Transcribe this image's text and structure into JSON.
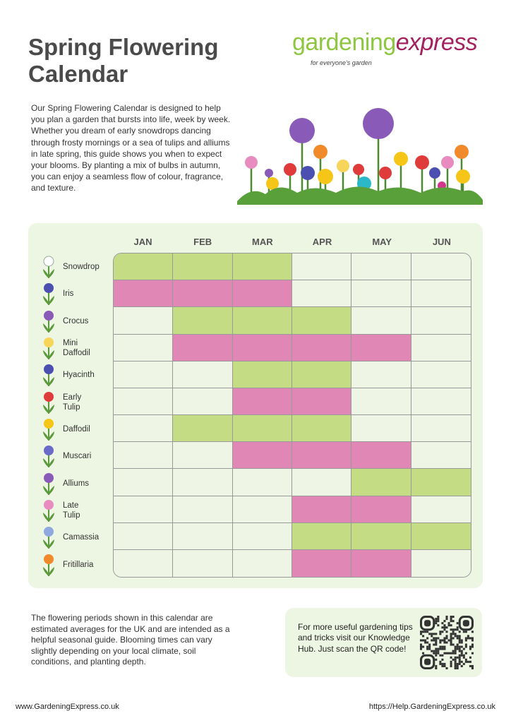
{
  "header": {
    "title_line1": "Spring Flowering",
    "title_line2": "Calendar"
  },
  "logo": {
    "part1": "gardening",
    "part2": "express",
    "tagline": "for everyone's garden"
  },
  "intro": "Our Spring Flowering Calendar is designed to help you plan a garden that bursts into life, week by week. Whether you dream of early snowdrops dancing through frosty mornings or a sea of tulips and alliums in late spring, this guide shows you when to expect your blooms. By planting a mix of bulbs in autumn, you can enjoy a seamless flow of colour, fragrance, and texture.",
  "colors": {
    "green": "#c4dc84",
    "pink": "#e087b6",
    "empty": "#eef5e4",
    "panel": "#edf5e3",
    "brand_green": "#8dc63f",
    "brand_magenta": "#a3215f"
  },
  "calendar": {
    "months": [
      "JAN",
      "FEB",
      "MAR",
      "APR",
      "MAY",
      "JUN"
    ],
    "rows": [
      {
        "name": "Snowdrop",
        "icon": "snowdrop-icon",
        "color": "#ffffff",
        "bloom": "g",
        "months": [
          1,
          1,
          1,
          0,
          0,
          0
        ]
      },
      {
        "name": "Iris",
        "icon": "iris-icon",
        "color": "#4a4fb0",
        "bloom": "p",
        "months": [
          1,
          1,
          1,
          0,
          0,
          0
        ]
      },
      {
        "name": "Crocus",
        "icon": "crocus-icon",
        "color": "#8a5ab8",
        "bloom": "g",
        "months": [
          0,
          1,
          1,
          1,
          0,
          0
        ]
      },
      {
        "name": "Mini\nDaffodil",
        "icon": "mini-daffodil-icon",
        "color": "#f7d45a",
        "bloom": "p",
        "months": [
          0,
          1,
          1,
          1,
          1,
          0
        ]
      },
      {
        "name": "Hyacinth",
        "icon": "hyacinth-icon",
        "color": "#4a4fb0",
        "bloom": "g",
        "months": [
          0,
          0,
          1,
          1,
          0,
          0
        ]
      },
      {
        "name": "Early\nTulip",
        "icon": "tulip-icon",
        "color": "#e03b3b",
        "bloom": "p",
        "months": [
          0,
          0,
          1,
          1,
          0,
          0
        ]
      },
      {
        "name": "Daffodil",
        "icon": "daffodil-icon",
        "color": "#f5c518",
        "bloom": "g",
        "months": [
          0,
          1,
          1,
          1,
          0,
          0
        ]
      },
      {
        "name": "Muscari",
        "icon": "muscari-icon",
        "color": "#6a6ac8",
        "bloom": "p",
        "months": [
          0,
          0,
          1,
          1,
          1,
          0
        ]
      },
      {
        "name": "Alliums",
        "icon": "allium-icon",
        "color": "#8a5ab8",
        "bloom": "g",
        "months": [
          0,
          0,
          0,
          0,
          1,
          1
        ]
      },
      {
        "name": "Late\nTulip",
        "icon": "late-tulip-icon",
        "color": "#e88cc0",
        "bloom": "p",
        "months": [
          0,
          0,
          0,
          1,
          1,
          0
        ]
      },
      {
        "name": "Camassia",
        "icon": "camassia-icon",
        "color": "#8fa8e0",
        "bloom": "g",
        "months": [
          0,
          0,
          0,
          1,
          1,
          1
        ]
      },
      {
        "name": "Fritillaria",
        "icon": "fritillaria-icon",
        "color": "#f08a2a",
        "bloom": "p",
        "months": [
          0,
          0,
          0,
          1,
          1,
          0
        ]
      }
    ]
  },
  "note": "The flowering periods shown in this calendar are estimated averages for the UK and are intended as a helpful seasonal guide. Blooming times can vary slightly depending on your local climate, soil conditions, and planting depth.",
  "qr_box": {
    "text": "For more useful gardening tips and tricks visit our Knowledge Hub. Just scan the QR code!"
  },
  "footer": {
    "left": "www.GardeningExpress.co.uk",
    "right": "https://Help.GardeningExpress.co.uk"
  }
}
